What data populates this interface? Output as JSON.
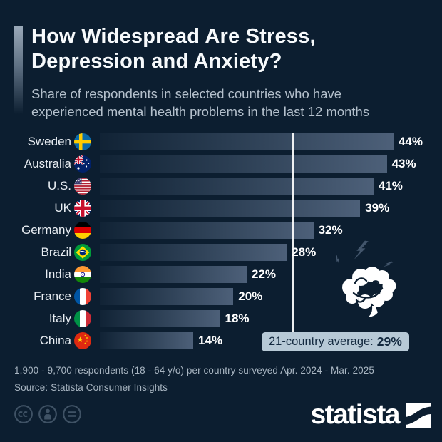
{
  "header": {
    "title_line1": "How Widespread Are Stress,",
    "title_line2": "Depression and Anxiety?",
    "subtitle_line1": "Share of respondents in selected countries who have",
    "subtitle_line2": "experienced mental health problems in the last 12 months"
  },
  "chart_data": {
    "type": "bar",
    "orientation": "horizontal",
    "unit": "%",
    "categories": [
      "Sweden",
      "Australia",
      "U.S.",
      "UK",
      "Germany",
      "Brazil",
      "India",
      "France",
      "Italy",
      "China"
    ],
    "values": [
      44,
      43,
      41,
      39,
      32,
      28,
      22,
      20,
      18,
      14
    ],
    "value_labels": [
      "44%",
      "43%",
      "41%",
      "39%",
      "32%",
      "28%",
      "22%",
      "20%",
      "18%",
      "14%"
    ],
    "flags": [
      "sweden",
      "australia",
      "us",
      "uk",
      "germany",
      "brazil",
      "india",
      "france",
      "italy",
      "china"
    ],
    "xlim": [
      0,
      44
    ],
    "gridlines": false,
    "legend": false,
    "average": {
      "label": "21-country average:",
      "value_label": "29%",
      "value": 29
    }
  },
  "decoration": {
    "brain_icon": "stressed-brain-with-lightning-bolts"
  },
  "footer": {
    "note": "1,900 - 9,700 respondents (18 - 64 y/o) per country surveyed Apr. 2024 - Mar. 2025",
    "source": "Source: Statista Consumer Insights"
  },
  "branding": {
    "logo_text": "statista"
  },
  "license": {
    "icons": [
      "cc-icon",
      "cc-by-person-icon",
      "cc-nd-equals-icon"
    ]
  },
  "colors": {
    "background": "#0c1e30",
    "bar_fill_end": "#4d6079",
    "title_text": "#f7fafc",
    "subtitle_text": "#b4c0cc",
    "country_label_text": "#e9eef3",
    "value_label_text": "#ffffff",
    "average_line": "#ffffff",
    "average_box_bg": "#b7c9d6",
    "average_box_text": "#13293f",
    "lightning_bolt": "#42556b",
    "footer_text": "#a9b6c2",
    "license_icon": "#3f5265"
  }
}
